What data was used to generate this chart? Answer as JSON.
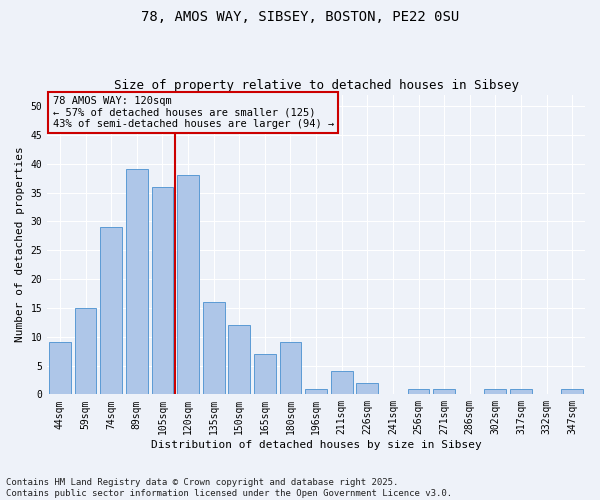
{
  "title1": "78, AMOS WAY, SIBSEY, BOSTON, PE22 0SU",
  "title2": "Size of property relative to detached houses in Sibsey",
  "xlabel": "Distribution of detached houses by size in Sibsey",
  "ylabel": "Number of detached properties",
  "categories": [
    "44sqm",
    "59sqm",
    "74sqm",
    "89sqm",
    "105sqm",
    "120sqm",
    "135sqm",
    "150sqm",
    "165sqm",
    "180sqm",
    "196sqm",
    "211sqm",
    "226sqm",
    "241sqm",
    "256sqm",
    "271sqm",
    "286sqm",
    "302sqm",
    "317sqm",
    "332sqm",
    "347sqm"
  ],
  "values": [
    9,
    15,
    29,
    39,
    36,
    38,
    16,
    12,
    7,
    9,
    1,
    4,
    2,
    0,
    1,
    1,
    0,
    1,
    1,
    0,
    1
  ],
  "bar_color": "#aec6e8",
  "bar_edge_color": "#5b9bd5",
  "vline_x": 4.5,
  "vline_color": "#cc0000",
  "annotation_text": "78 AMOS WAY: 120sqm\n← 57% of detached houses are smaller (125)\n43% of semi-detached houses are larger (94) →",
  "box_color": "#cc0000",
  "ylim": [
    0,
    52
  ],
  "yticks": [
    0,
    5,
    10,
    15,
    20,
    25,
    30,
    35,
    40,
    45,
    50
  ],
  "background_color": "#eef2f9",
  "grid_color": "#ffffff",
  "footer": "Contains HM Land Registry data © Crown copyright and database right 2025.\nContains public sector information licensed under the Open Government Licence v3.0.",
  "title_fontsize": 10,
  "subtitle_fontsize": 9,
  "axis_label_fontsize": 8,
  "tick_fontsize": 7,
  "annotation_fontsize": 7.5,
  "footer_fontsize": 6.5
}
